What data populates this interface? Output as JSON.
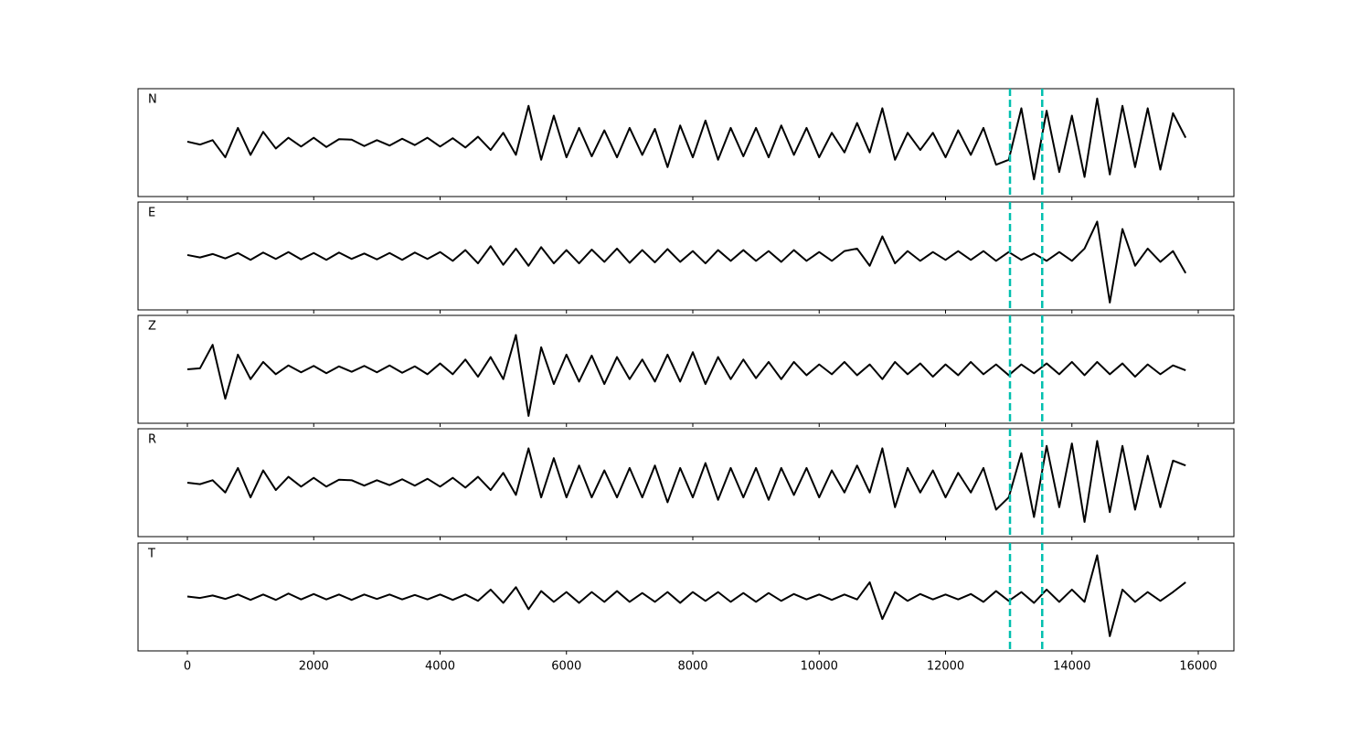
{
  "chart_data": {
    "type": "line",
    "x": [
      0,
      200,
      400,
      600,
      800,
      1000,
      1200,
      1400,
      1600,
      1800,
      2000,
      2200,
      2400,
      2600,
      2800,
      3000,
      3200,
      3400,
      3600,
      3800,
      4000,
      4200,
      4400,
      4600,
      4800,
      5000,
      5200,
      5400,
      5600,
      5800,
      6000,
      6200,
      6400,
      6600,
      6800,
      7000,
      7200,
      7400,
      7600,
      7800,
      8000,
      8200,
      8400,
      8600,
      8800,
      9000,
      9200,
      9400,
      9600,
      9800,
      10000,
      10200,
      10400,
      10600,
      10800,
      11000,
      11200,
      11400,
      11600,
      11800,
      12000,
      12200,
      12400,
      12600,
      12800,
      13000,
      13200,
      13400,
      13600,
      13800,
      14000,
      14200,
      14400,
      14600,
      14800,
      15000,
      15200,
      15400,
      15600,
      15800
    ],
    "series": [
      {
        "name": "N",
        "color": "#000000",
        "values": [
          0.02,
          -0.04,
          0.05,
          -0.3,
          0.3,
          -0.25,
          0.22,
          -0.12,
          0.1,
          -0.08,
          0.1,
          -0.09,
          0.07,
          0.06,
          -0.07,
          0.05,
          -0.06,
          0.08,
          -0.05,
          0.1,
          -0.08,
          0.09,
          -0.1,
          0.12,
          -0.15,
          0.2,
          -0.25,
          0.75,
          -0.35,
          0.55,
          -0.3,
          0.3,
          -0.28,
          0.25,
          -0.3,
          0.3,
          -0.25,
          0.28,
          -0.5,
          0.35,
          -0.3,
          0.45,
          -0.35,
          0.3,
          -0.28,
          0.3,
          -0.3,
          0.35,
          -0.25,
          0.3,
          -0.3,
          0.2,
          -0.2,
          0.4,
          -0.2,
          0.7,
          -0.35,
          0.2,
          -0.15,
          0.2,
          -0.3,
          0.25,
          -0.25,
          0.3,
          -0.45,
          -0.35,
          0.7,
          -0.75,
          0.65,
          -0.6,
          0.55,
          -0.7,
          0.9,
          -0.65,
          0.75,
          -0.5,
          0.7,
          -0.55,
          0.6,
          0.1
        ]
      },
      {
        "name": "E",
        "color": "#000000",
        "values": [
          0.02,
          -0.03,
          0.04,
          -0.05,
          0.06,
          -0.08,
          0.07,
          -0.06,
          0.08,
          -0.07,
          0.06,
          -0.08,
          0.07,
          -0.06,
          0.05,
          -0.07,
          0.06,
          -0.08,
          0.07,
          -0.06,
          0.08,
          -0.1,
          0.12,
          -0.15,
          0.2,
          -0.18,
          0.15,
          -0.2,
          0.18,
          -0.15,
          0.12,
          -0.15,
          0.13,
          -0.12,
          0.15,
          -0.14,
          0.12,
          -0.13,
          0.14,
          -0.12,
          0.1,
          -0.15,
          0.12,
          -0.1,
          0.12,
          -0.1,
          0.1,
          -0.12,
          0.12,
          -0.1,
          0.08,
          -0.1,
          0.1,
          0.15,
          -0.2,
          0.4,
          -0.15,
          0.1,
          -0.1,
          0.08,
          -0.08,
          0.1,
          -0.08,
          0.1,
          -0.1,
          0.08,
          -0.08,
          0.05,
          -0.1,
          0.08,
          -0.1,
          0.15,
          0.7,
          -0.95,
          0.55,
          -0.2,
          0.15,
          -0.12,
          0.1,
          -0.35
        ]
      },
      {
        "name": "Z",
        "color": "#000000",
        "values": [
          0.0,
          0.02,
          0.5,
          -0.6,
          0.3,
          -0.2,
          0.15,
          -0.1,
          0.08,
          -0.06,
          0.07,
          -0.08,
          0.06,
          -0.05,
          0.07,
          -0.06,
          0.08,
          -0.07,
          0.06,
          -0.1,
          0.12,
          -0.1,
          0.2,
          -0.15,
          0.25,
          -0.2,
          0.7,
          -0.95,
          0.45,
          -0.3,
          0.3,
          -0.25,
          0.28,
          -0.3,
          0.25,
          -0.2,
          0.2,
          -0.25,
          0.3,
          -0.25,
          0.35,
          -0.3,
          0.25,
          -0.2,
          0.2,
          -0.18,
          0.15,
          -0.2,
          0.15,
          -0.12,
          0.1,
          -0.1,
          0.15,
          -0.12,
          0.1,
          -0.2,
          0.15,
          -0.1,
          0.12,
          -0.15,
          0.1,
          -0.12,
          0.15,
          -0.1,
          0.1,
          -0.12,
          0.1,
          -0.08,
          0.12,
          -0.1,
          0.15,
          -0.12,
          0.15,
          -0.1,
          0.12,
          -0.15,
          0.1,
          -0.1,
          0.08,
          -0.02
        ]
      },
      {
        "name": "R",
        "color": "#000000",
        "values": [
          0.0,
          -0.03,
          0.05,
          -0.2,
          0.3,
          -0.3,
          0.25,
          -0.15,
          0.12,
          -0.08,
          0.1,
          -0.08,
          0.06,
          0.05,
          -0.06,
          0.05,
          -0.05,
          0.07,
          -0.06,
          0.08,
          -0.08,
          0.1,
          -0.1,
          0.12,
          -0.15,
          0.2,
          -0.25,
          0.7,
          -0.3,
          0.5,
          -0.3,
          0.35,
          -0.3,
          0.25,
          -0.3,
          0.3,
          -0.3,
          0.35,
          -0.4,
          0.3,
          -0.3,
          0.4,
          -0.35,
          0.3,
          -0.3,
          0.3,
          -0.35,
          0.3,
          -0.25,
          0.3,
          -0.3,
          0.25,
          -0.2,
          0.35,
          -0.2,
          0.7,
          -0.5,
          0.3,
          -0.2,
          0.25,
          -0.3,
          0.2,
          -0.2,
          0.3,
          -0.55,
          -0.3,
          0.6,
          -0.7,
          0.75,
          -0.5,
          0.8,
          -0.8,
          0.85,
          -0.6,
          0.75,
          -0.55,
          0.55,
          -0.5,
          0.45,
          0.35
        ]
      },
      {
        "name": "T",
        "color": "#000000",
        "values": [
          0.01,
          -0.02,
          0.03,
          -0.04,
          0.05,
          -0.06,
          0.05,
          -0.06,
          0.07,
          -0.05,
          0.06,
          -0.05,
          0.05,
          -0.06,
          0.05,
          -0.04,
          0.05,
          -0.05,
          0.04,
          -0.05,
          0.05,
          -0.06,
          0.05,
          -0.08,
          0.15,
          -0.12,
          0.2,
          -0.25,
          0.12,
          -0.1,
          0.1,
          -0.12,
          0.1,
          -0.1,
          0.12,
          -0.1,
          0.08,
          -0.1,
          0.1,
          -0.12,
          0.1,
          -0.08,
          0.1,
          -0.1,
          0.08,
          -0.1,
          0.08,
          -0.08,
          0.06,
          -0.05,
          0.05,
          -0.06,
          0.05,
          -0.05,
          0.3,
          -0.45,
          0.1,
          -0.08,
          0.06,
          -0.05,
          0.05,
          -0.05,
          0.06,
          -0.1,
          0.12,
          -0.08,
          0.1,
          -0.12,
          0.15,
          -0.1,
          0.15,
          -0.1,
          0.85,
          -0.8,
          0.15,
          -0.1,
          0.1,
          -0.08,
          0.1,
          0.3
        ]
      }
    ],
    "xlim": [
      -781,
      16564
    ],
    "xticks": [
      0,
      2000,
      4000,
      6000,
      8000,
      10000,
      12000,
      14000,
      16000
    ],
    "ylim": [
      -1.1,
      1.1
    ],
    "vlines": [
      13020,
      13530
    ],
    "vline_color": "#00bfae"
  }
}
